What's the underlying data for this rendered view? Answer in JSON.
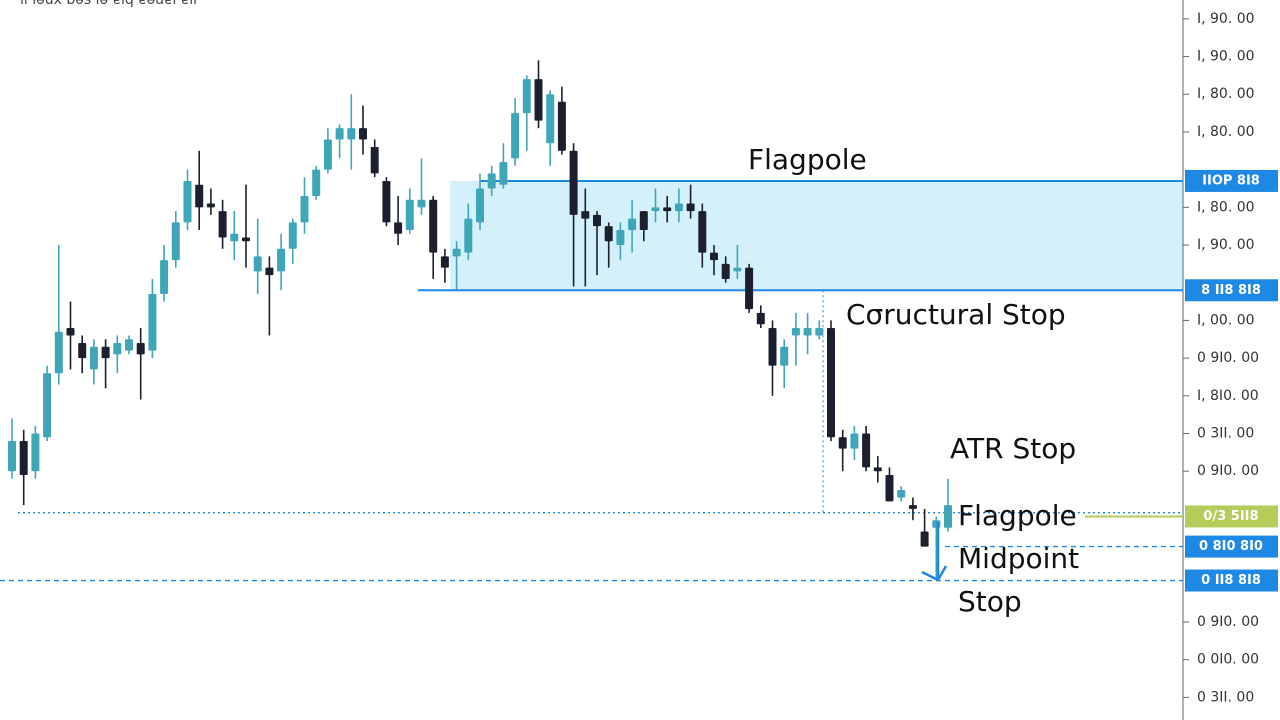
{
  "chart_data": {
    "type": "candlestick",
    "title": "ıı ıəux ƃəs ıə ɐıq ɐəuɐı ɐıı",
    "up_color": "#3fa6b7",
    "down_color": "#1b1f2e",
    "open": [
      0.7,
      0.78,
      0.7,
      0.79,
      0.96,
      1.08,
      1.04,
      0.97,
      1.03,
      1.01,
      1.02,
      1.04,
      1.02,
      1.17,
      1.26,
      1.36,
      1.46,
      1.41,
      1.39,
      1.31,
      1.32,
      1.23,
      1.24,
      1.23,
      1.29,
      1.36,
      1.43,
      1.5,
      1.58,
      1.58,
      1.61,
      1.56,
      1.47,
      1.36,
      1.34,
      1.4,
      1.42,
      1.27,
      1.27,
      1.28,
      1.36,
      1.45,
      1.46,
      1.53,
      1.65,
      1.74,
      1.57,
      1.68,
      1.55,
      1.39,
      1.38,
      1.35,
      1.3,
      1.34,
      1.39,
      1.39,
      1.4,
      1.39,
      1.41,
      1.39,
      1.28,
      1.25,
      1.23,
      1.24,
      1.12,
      1.08,
      0.98,
      1.06,
      1.06,
      1.06,
      1.08,
      0.79,
      0.76,
      0.8,
      0.71,
      0.69,
      0.63,
      0.61,
      0.54,
      0.55,
      0.55
    ],
    "high": [
      0.84,
      0.81,
      0.82,
      0.98,
      1.3,
      1.15,
      1.06,
      1.05,
      1.05,
      1.06,
      1.06,
      1.08,
      1.21,
      1.3,
      1.39,
      1.5,
      1.55,
      1.45,
      1.42,
      1.39,
      1.46,
      1.37,
      1.27,
      1.33,
      1.37,
      1.48,
      1.51,
      1.61,
      1.62,
      1.7,
      1.67,
      1.58,
      1.48,
      1.43,
      1.45,
      1.53,
      1.43,
      1.29,
      1.31,
      1.41,
      1.49,
      1.51,
      1.57,
      1.69,
      1.75,
      1.79,
      1.71,
      1.72,
      1.57,
      1.45,
      1.39,
      1.36,
      1.36,
      1.42,
      1.39,
      1.45,
      1.43,
      1.45,
      1.46,
      1.41,
      1.3,
      1.27,
      1.3,
      1.25,
      1.14,
      1.1,
      1.05,
      1.12,
      1.12,
      1.1,
      1.1,
      0.81,
      0.82,
      0.82,
      0.74,
      0.71,
      0.66,
      0.63,
      0.6,
      0.58,
      0.68
    ],
    "low": [
      0.68,
      0.61,
      0.68,
      0.78,
      0.93,
      0.97,
      0.96,
      0.93,
      0.92,
      0.96,
      1.01,
      0.89,
      1.0,
      1.15,
      1.24,
      1.34,
      1.34,
      1.38,
      1.29,
      1.26,
      1.24,
      1.17,
      1.06,
      1.18,
      1.25,
      1.33,
      1.42,
      1.49,
      1.53,
      1.5,
      1.54,
      1.48,
      1.35,
      1.3,
      1.33,
      1.38,
      1.21,
      1.2,
      1.18,
      1.26,
      1.34,
      1.43,
      1.45,
      1.51,
      1.55,
      1.61,
      1.51,
      1.54,
      1.19,
      1.19,
      1.22,
      1.24,
      1.26,
      1.28,
      1.31,
      1.36,
      1.36,
      1.36,
      1.37,
      1.24,
      1.22,
      1.2,
      1.21,
      1.12,
      1.08,
      0.9,
      0.92,
      0.98,
      1.01,
      1.05,
      0.78,
      0.7,
      0.73,
      0.7,
      0.67,
      0.62,
      0.62,
      0.57,
      0.5,
      0.41,
      0.54
    ],
    "close": [
      0.78,
      0.69,
      0.8,
      0.96,
      1.07,
      1.06,
      1.0,
      1.03,
      1.0,
      1.04,
      1.05,
      1.01,
      1.17,
      1.26,
      1.36,
      1.47,
      1.4,
      1.4,
      1.32,
      1.33,
      1.31,
      1.27,
      1.22,
      1.29,
      1.36,
      1.43,
      1.5,
      1.58,
      1.61,
      1.61,
      1.58,
      1.49,
      1.36,
      1.33,
      1.42,
      1.42,
      1.28,
      1.24,
      1.29,
      1.37,
      1.45,
      1.49,
      1.52,
      1.65,
      1.74,
      1.63,
      1.7,
      1.55,
      1.38,
      1.37,
      1.35,
      1.31,
      1.34,
      1.37,
      1.34,
      1.4,
      1.39,
      1.41,
      1.39,
      1.28,
      1.26,
      1.21,
      1.24,
      1.13,
      1.09,
      0.98,
      1.03,
      1.08,
      1.08,
      1.08,
      0.79,
      0.76,
      0.8,
      0.71,
      0.7,
      0.62,
      0.65,
      0.6,
      0.5,
      0.57,
      0.61
    ],
    "ylim": [
      0.04,
      1.95
    ],
    "yticks": [
      {
        "value": 1.9,
        "label": "I, 90. 00"
      },
      {
        "value": 1.8,
        "label": "I, 90. 00"
      },
      {
        "value": 1.7,
        "label": "I, 80. 00"
      },
      {
        "value": 1.6,
        "label": "I, 80. 00"
      },
      {
        "value": 1.4,
        "label": "I, 80. 00"
      },
      {
        "value": 1.3,
        "label": "I, 90. 00"
      },
      {
        "value": 1.1,
        "label": "I, 00. 00"
      },
      {
        "value": 1.0,
        "label": "0 9I0. 00"
      },
      {
        "value": 0.9,
        "label": "I, 8I0. 00"
      },
      {
        "value": 0.8,
        "label": "0 3II. 00"
      },
      {
        "value": 0.7,
        "label": "0 9I0. 00"
      },
      {
        "value": 0.3,
        "label": "0 9I0. 00"
      },
      {
        "value": 0.2,
        "label": "0 0I0. 00"
      },
      {
        "value": 0.1,
        "label": "0 3II. 00"
      }
    ],
    "levels": [
      {
        "value": 1.47,
        "label": "IIOP 8I8",
        "color": "#1e88e5",
        "style": "solid"
      },
      {
        "value": 1.18,
        "label": "8 II8 8I8",
        "color": "#1e88e5",
        "style": "solid"
      },
      {
        "value": 0.59,
        "color": "#1e88e5",
        "style": "dotted"
      },
      {
        "value": 0.58,
        "label": "0/3 5II8",
        "color": "#b5cc5a",
        "style": "solid"
      },
      {
        "value": 0.5,
        "label": "0 8I0 8I0",
        "color": "#1e88e5",
        "style": "dashed"
      },
      {
        "value": 0.41,
        "label": "0 II8 8I8",
        "color": "#1e88e5",
        "style": "dashed"
      }
    ],
    "zone_color": "#d4f1fb",
    "annotations": [
      {
        "lines": [
          "Flagpole"
        ]
      },
      {
        "lines": [
          "Cσructural Stop"
        ]
      },
      {
        "lines": [
          "ATR Stop"
        ]
      },
      {
        "lines": [
          "Flagpole",
          "Midpoint",
          "Stop"
        ]
      }
    ]
  }
}
